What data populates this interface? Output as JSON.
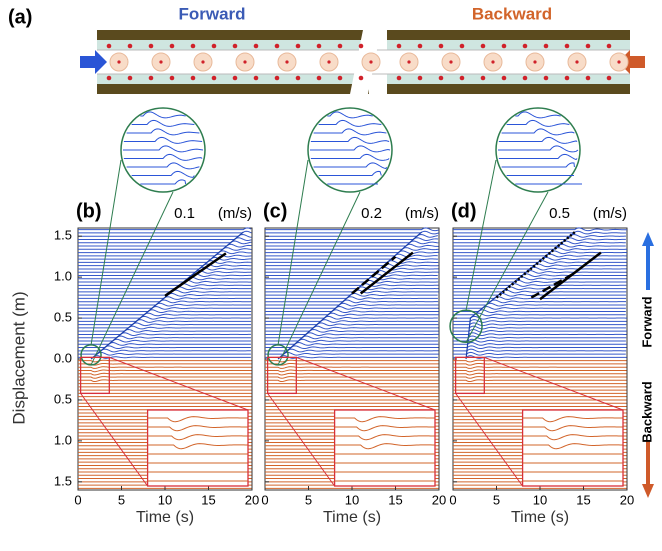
{
  "chart_data": {
    "type": "line",
    "header": {
      "label": "(a)",
      "forward": "Forward",
      "backward": "Backward"
    },
    "xlabel": "Time (s)",
    "ylabel": "Displacement (m)",
    "xlim": [
      0,
      20
    ],
    "ylim": [
      -1.6,
      1.6
    ],
    "xticks": [
      0,
      5,
      10,
      15,
      20
    ],
    "yticks": [
      {
        "value": 1.5,
        "label": "1.5"
      },
      {
        "value": 1,
        "label": "1.0"
      },
      0.5,
      {
        "value": 0,
        "label": "0.0"
      },
      {
        "value": -0.5,
        "label": "0.5"
      },
      {
        "value": -1,
        "label": "1.0"
      },
      {
        "value": -1.5,
        "label": "1.5"
      }
    ],
    "forward_color": "#3557c9",
    "backward_color": "#d2642a",
    "side_labels": [
      "Forward",
      "Backward"
    ],
    "panels": [
      {
        "label": "(b)",
        "speed": "0.1",
        "unit": "(m/s)",
        "front": {
          "x": [
            1.5,
            19
          ],
          "y": [
            0,
            1.55
          ]
        },
        "fits": [
          {
            "style": "solid",
            "x": [
              10,
              17
            ],
            "y": [
              0.77,
              1.29
            ]
          }
        ]
      },
      {
        "label": "(c)",
        "speed": "0.2",
        "unit": "(m/s)",
        "front": {
          "x": [
            1.5,
            18
          ],
          "y": [
            0,
            1.55
          ]
        },
        "fits": [
          {
            "style": "dashed",
            "x": [
              10,
              15
            ],
            "y": [
              0.8,
              1.25
            ]
          },
          {
            "style": "solid",
            "x": [
              11,
              17
            ],
            "y": [
              0.8,
              1.3
            ]
          }
        ]
      },
      {
        "label": "(d)",
        "speed": "0.5",
        "unit": "(m/s)",
        "front": {
          "x": [
            1.5,
            2,
            14
          ],
          "y": [
            0,
            0.5,
            1.55
          ]
        },
        "fits": [
          {
            "style": "dotted",
            "x": [
              5,
              14
            ],
            "y": [
              0.75,
              1.55
            ]
          },
          {
            "style": "dashed",
            "x": [
              9,
              14
            ],
            "y": [
              0.75,
              1.05
            ]
          },
          {
            "style": "solid",
            "x": [
              10,
              17
            ],
            "y": [
              0.73,
              1.3
            ]
          }
        ]
      }
    ]
  }
}
